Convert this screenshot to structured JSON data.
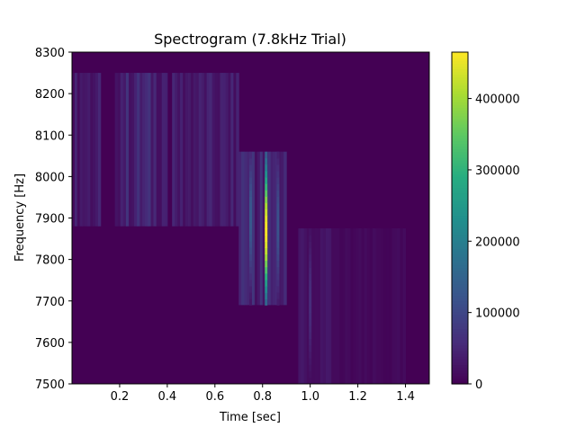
{
  "chart_data": {
    "type": "heatmap",
    "title": "Spectrogram (7.8kHz Trial)",
    "xlabel": "Time [sec]",
    "ylabel": "Frequency [Hz]",
    "xlim": [
      0.0,
      1.5
    ],
    "ylim": [
      7500,
      8300
    ],
    "x_ticks": [
      0.2,
      0.4,
      0.6,
      0.8,
      1.0,
      1.2,
      1.4
    ],
    "x_tick_labels": [
      "0.2",
      "0.4",
      "0.6",
      "0.8",
      "1.0",
      "1.2",
      "1.4"
    ],
    "y_ticks": [
      7500,
      7600,
      7700,
      7800,
      7900,
      8000,
      8100,
      8200,
      8300
    ],
    "y_tick_labels": [
      "7500",
      "7600",
      "7700",
      "7800",
      "7900",
      "8000",
      "8100",
      "8200",
      "8300"
    ],
    "colormap": "viridis",
    "colorbar": {
      "range": [
        0,
        465000
      ],
      "ticks": [
        0,
        100000,
        200000,
        300000,
        400000
      ],
      "tick_labels": [
        "0",
        "100000",
        "200000",
        "300000",
        "400000"
      ]
    },
    "energy_regions": [
      {
        "t": [
          0.0,
          0.12
        ],
        "f": [
          7880,
          8250
        ],
        "level": 35000
      },
      {
        "t": [
          0.18,
          0.4
        ],
        "f": [
          7880,
          8250
        ],
        "level": 50000
      },
      {
        "t": [
          0.42,
          0.7
        ],
        "f": [
          7880,
          8250
        ],
        "level": 35000
      },
      {
        "t": [
          0.7,
          0.9
        ],
        "f": [
          7690,
          8060
        ],
        "level": 50000
      },
      {
        "t": [
          0.95,
          1.1
        ],
        "f": [
          7500,
          7875
        ],
        "level": 25000
      },
      {
        "t": [
          1.1,
          1.4
        ],
        "f": [
          7500,
          7875
        ],
        "level": 10000
      }
    ],
    "peaks": [
      {
        "t": 0.815,
        "f_range": [
          7690,
          8060
        ],
        "peak_f": 7870,
        "max": 460000
      },
      {
        "t": 0.75,
        "f_range": [
          7690,
          8060
        ],
        "peak_f": 7900,
        "max": 130000
      },
      {
        "t": 0.865,
        "f_range": [
          7690,
          8060
        ],
        "peak_f": 7880,
        "max": 120000
      },
      {
        "t": 1.0,
        "f_range": [
          7500,
          7875
        ],
        "peak_f": 7700,
        "max": 60000
      }
    ]
  }
}
